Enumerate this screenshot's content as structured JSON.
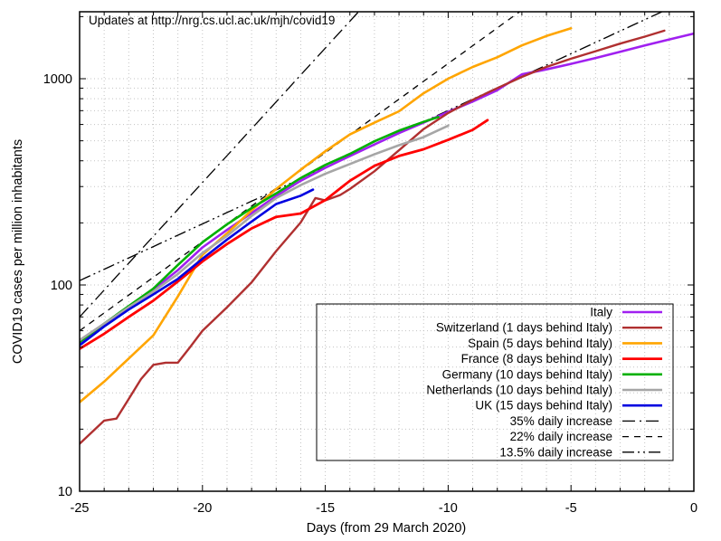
{
  "chart_data": {
    "type": "line",
    "title": "Updates at http://nrg.cs.ucl.ac.uk/mjh/covid19",
    "title_color": "#9e9e9e",
    "xlabel": "Days (from 29 March 2020)",
    "ylabel": "COVID19 cases per million inhabitants",
    "x_range": [
      -25,
      0
    ],
    "y_scale": "log",
    "y_range": [
      10,
      2113
    ],
    "x_major_ticks": [
      -25,
      -20,
      -15,
      -10,
      -5,
      0
    ],
    "x_minor_tick_step": 1,
    "y_major_ticks": [
      10,
      100,
      1000
    ],
    "y_minor_gridlines": [
      20,
      30,
      40,
      50,
      60,
      70,
      80,
      90,
      100,
      200,
      300,
      400,
      500,
      600,
      700,
      800,
      900,
      1000,
      2000
    ],
    "grid": {
      "visible": true,
      "style": "dotted",
      "color": "#c3c3c3"
    },
    "legend": {
      "position": "bottom-right",
      "boxed": true,
      "transparent": true
    },
    "series": [
      {
        "label": "Italy",
        "color": "#a020f0",
        "width": 2.6,
        "points": [
          [
            -25,
            52
          ],
          [
            -24,
            64
          ],
          [
            -23,
            78
          ],
          [
            -22,
            95
          ],
          [
            -21,
            118
          ],
          [
            -20,
            152
          ],
          [
            -19,
            185
          ],
          [
            -18,
            223
          ],
          [
            -17,
            270
          ],
          [
            -16,
            320
          ],
          [
            -15,
            370
          ],
          [
            -14,
            422
          ],
          [
            -13,
            480
          ],
          [
            -12,
            545
          ],
          [
            -11,
            612
          ],
          [
            -10,
            690
          ],
          [
            -9,
            775
          ],
          [
            -8,
            880
          ],
          [
            -7,
            1050
          ],
          [
            -6,
            1110
          ],
          [
            -5,
            1180
          ],
          [
            -4,
            1260
          ],
          [
            -3,
            1350
          ],
          [
            -2,
            1450
          ],
          [
            -1,
            1550
          ],
          [
            0,
            1655
          ]
        ]
      },
      {
        "label": "Switzerland (1 days behind Italy)",
        "color": "#b03030",
        "width": 2.4,
        "points": [
          [
            -25,
            17
          ],
          [
            -24,
            22
          ],
          [
            -23.5,
            22.5
          ],
          [
            -23,
            28
          ],
          [
            -22.5,
            35
          ],
          [
            -22,
            41
          ],
          [
            -21.5,
            42
          ],
          [
            -21,
            42
          ],
          [
            -20.5,
            50
          ],
          [
            -20,
            60
          ],
          [
            -19,
            78
          ],
          [
            -18,
            103
          ],
          [
            -17,
            146
          ],
          [
            -16,
            201
          ],
          [
            -15.4,
            264
          ],
          [
            -15,
            257
          ],
          [
            -14.4,
            273
          ],
          [
            -14,
            292
          ],
          [
            -13,
            356
          ],
          [
            -12,
            450
          ],
          [
            -11,
            570
          ],
          [
            -10,
            682
          ],
          [
            -9,
            790
          ],
          [
            -8,
            900
          ],
          [
            -7,
            1020
          ],
          [
            -6,
            1140
          ],
          [
            -5,
            1250
          ],
          [
            -4,
            1360
          ],
          [
            -3,
            1480
          ],
          [
            -2,
            1600
          ],
          [
            -1.2,
            1710
          ]
        ]
      },
      {
        "label": "Spain (5 days behind Italy)",
        "color": "#ffa500",
        "width": 2.6,
        "points": [
          [
            -25,
            27
          ],
          [
            -24,
            34
          ],
          [
            -23,
            44
          ],
          [
            -22,
            57
          ],
          [
            -21,
            88
          ],
          [
            -20,
            140
          ],
          [
            -19,
            178
          ],
          [
            -18,
            230
          ],
          [
            -17,
            292
          ],
          [
            -16,
            362
          ],
          [
            -15,
            445
          ],
          [
            -14,
            537
          ],
          [
            -13,
            612
          ],
          [
            -12,
            695
          ],
          [
            -11,
            850
          ],
          [
            -10,
            1000
          ],
          [
            -9,
            1140
          ],
          [
            -8,
            1270
          ],
          [
            -7,
            1450
          ],
          [
            -6,
            1610
          ],
          [
            -5,
            1755
          ]
        ]
      },
      {
        "label": "France (8 days behind Italy)",
        "color": "#ff0000",
        "width": 2.8,
        "points": [
          [
            -25,
            49
          ],
          [
            -24,
            58
          ],
          [
            -23,
            70
          ],
          [
            -22,
            84
          ],
          [
            -21,
            104
          ],
          [
            -20,
            130
          ],
          [
            -19,
            158
          ],
          [
            -18,
            188
          ],
          [
            -17,
            214
          ],
          [
            -16,
            222
          ],
          [
            -15,
            258
          ],
          [
            -14,
            320
          ],
          [
            -13,
            378
          ],
          [
            -12,
            422
          ],
          [
            -11,
            455
          ],
          [
            -10,
            505
          ],
          [
            -9,
            565
          ],
          [
            -8.4,
            630
          ]
        ]
      },
      {
        "label": "Germany (10 days behind Italy)",
        "color": "#00b000",
        "width": 2.6,
        "points": [
          [
            -25,
            53
          ],
          [
            -24,
            65
          ],
          [
            -23,
            79
          ],
          [
            -22,
            96
          ],
          [
            -21,
            125
          ],
          [
            -20,
            161
          ],
          [
            -19,
            197
          ],
          [
            -18,
            236
          ],
          [
            -17,
            278
          ],
          [
            -16,
            330
          ],
          [
            -15,
            382
          ],
          [
            -14,
            432
          ],
          [
            -13,
            497
          ],
          [
            -12,
            560
          ],
          [
            -11,
            618
          ],
          [
            -10.4,
            652
          ]
        ]
      },
      {
        "label": "Netherlands (10 days behind Italy)",
        "color": "#a6a6a6",
        "width": 2.6,
        "points": [
          [
            -25,
            54
          ],
          [
            -24,
            65
          ],
          [
            -23,
            78
          ],
          [
            -22,
            93
          ],
          [
            -21,
            113
          ],
          [
            -20,
            143
          ],
          [
            -19,
            173
          ],
          [
            -18,
            216
          ],
          [
            -17,
            264
          ],
          [
            -16,
            305
          ],
          [
            -15,
            346
          ],
          [
            -14,
            386
          ],
          [
            -13,
            430
          ],
          [
            -12,
            476
          ],
          [
            -11,
            521
          ],
          [
            -10,
            592
          ]
        ]
      },
      {
        "label": "UK (15 days behind Italy)",
        "color": "#0000e0",
        "width": 2.6,
        "points": [
          [
            -25,
            51
          ],
          [
            -24,
            63
          ],
          [
            -23,
            76
          ],
          [
            -22,
            90
          ],
          [
            -21,
            107
          ],
          [
            -20,
            134
          ],
          [
            -19,
            166
          ],
          [
            -18,
            203
          ],
          [
            -17,
            247
          ],
          [
            -16,
            271
          ],
          [
            -15.5,
            290
          ]
        ]
      }
    ],
    "reference_lines": [
      {
        "label": "35% daily increase",
        "daily_increase_pct": 35,
        "value_at_day_minus25": 70,
        "color": "#000000",
        "dash": "dash-dot",
        "width": 1.3
      },
      {
        "label": "22% daily increase",
        "daily_increase_pct": 22,
        "value_at_day_minus25": 60,
        "color": "#000000",
        "dash": "dashed",
        "width": 1.3
      },
      {
        "label": "13.5% daily increase",
        "daily_increase_pct": 13.5,
        "value_at_day_minus25": 105,
        "color": "#000000",
        "dash": "dash-dot-dot",
        "width": 1.3
      }
    ]
  }
}
